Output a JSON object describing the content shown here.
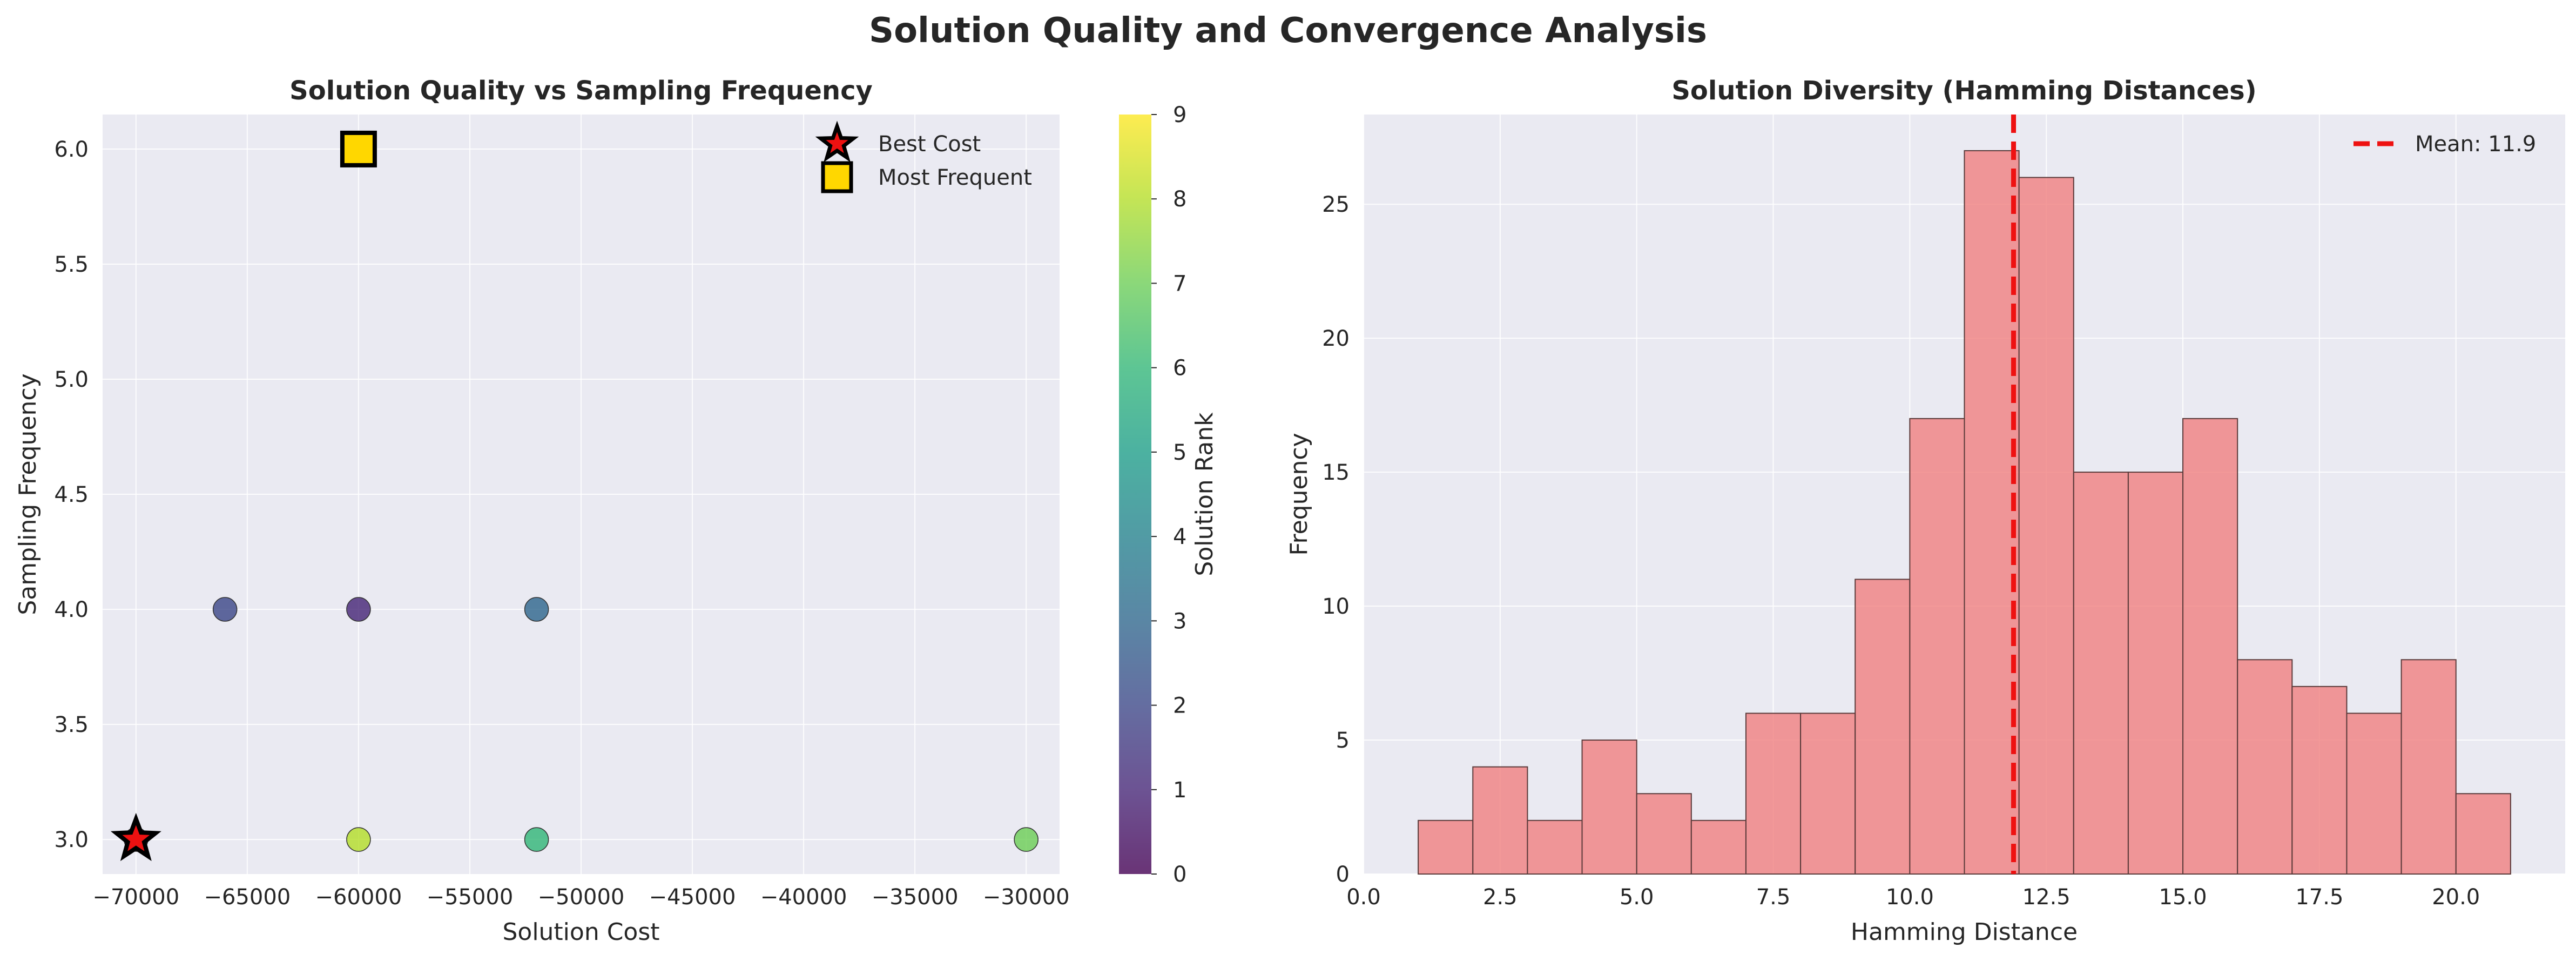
{
  "suptitle": "Solution Quality and Convergence Analysis",
  "colors": {
    "axes_bg": "#eaeaf2",
    "grid": "#ffffff",
    "hist_fill": "#f08080",
    "hist_edge": "#5a3a3a",
    "mean_line": "#ee1111",
    "best_star": "#ee1111",
    "most_frequent": "#ffd700",
    "text": "#262626"
  },
  "chart_data": [
    {
      "type": "scatter",
      "title": "Solution Quality vs Sampling Frequency",
      "xlabel": "Solution Cost",
      "ylabel": "Sampling Frequency",
      "xlim": [
        -71500,
        -28500
      ],
      "ylim": [
        2.85,
        6.15
      ],
      "xticks": [
        -70000,
        -65000,
        -60000,
        -55000,
        -50000,
        -45000,
        -40000,
        -35000,
        -30000
      ],
      "xtick_labels": [
        "−70000",
        "−65000",
        "−60000",
        "−55000",
        "−50000",
        "−45000",
        "−40000",
        "−35000",
        "−30000"
      ],
      "yticks": [
        3.0,
        3.5,
        4.0,
        4.5,
        5.0,
        5.5,
        6.0
      ],
      "ytick_labels": [
        "3.0",
        "3.5",
        "4.0",
        "4.5",
        "5.0",
        "5.5",
        "6.0"
      ],
      "grid": true,
      "points": [
        {
          "x": -70000,
          "y": 3,
          "rank": 0
        },
        {
          "x": -60000,
          "y": 6,
          "rank": 1
        },
        {
          "x": -60000,
          "y": 4,
          "rank": 1
        },
        {
          "x": -66000,
          "y": 4,
          "rank": 2
        },
        {
          "x": -52000,
          "y": 4,
          "rank": 3
        },
        {
          "x": -52000,
          "y": 3,
          "rank": 6
        },
        {
          "x": -30000,
          "y": 3,
          "rank": 7
        },
        {
          "x": -60000,
          "y": 3,
          "rank": 8
        }
      ],
      "highlights": [
        {
          "label": "Best Cost",
          "marker": "star",
          "x": -70000,
          "y": 3
        },
        {
          "label": "Most Frequent",
          "marker": "square",
          "x": -60000,
          "y": 6
        }
      ],
      "legend_loc": "upper-right",
      "colorbar": {
        "label": "Solution Rank",
        "min": 0,
        "max": 9,
        "ticks": [
          0,
          1,
          2,
          3,
          4,
          5,
          6,
          7,
          8,
          9
        ],
        "tick_labels": [
          "0",
          "1",
          "2",
          "3",
          "4",
          "5",
          "6",
          "7",
          "8",
          "9"
        ],
        "colormap": "viridis"
      }
    },
    {
      "type": "bar",
      "title": "Solution Diversity (Hamming Distances)",
      "xlabel": "Hamming Distance",
      "ylabel": "Frequency",
      "xlim": [
        0,
        22
      ],
      "ylim": [
        0,
        28.35
      ],
      "xticks": [
        0,
        2.5,
        5,
        7.5,
        10,
        12.5,
        15,
        17.5,
        20
      ],
      "xtick_labels": [
        "0.0",
        "2.5",
        "5.0",
        "7.5",
        "10.0",
        "12.5",
        "15.0",
        "17.5",
        "20.0"
      ],
      "yticks": [
        0,
        5,
        10,
        15,
        20,
        25
      ],
      "ytick_labels": [
        "0",
        "5",
        "10",
        "15",
        "20",
        "25"
      ],
      "grid": true,
      "bin_edges": [
        1,
        2,
        3,
        4,
        5,
        6,
        7,
        8,
        9,
        10,
        11,
        12,
        13,
        14,
        15,
        16,
        17,
        18,
        19,
        20,
        21
      ],
      "counts": [
        2,
        4,
        2,
        5,
        3,
        2,
        6,
        6,
        11,
        17,
        27,
        26,
        15,
        15,
        17,
        8,
        7,
        6,
        8,
        3
      ],
      "mean_line": {
        "value": 11.9,
        "label": "Mean: 11.9"
      },
      "legend_loc": "upper-right"
    }
  ]
}
